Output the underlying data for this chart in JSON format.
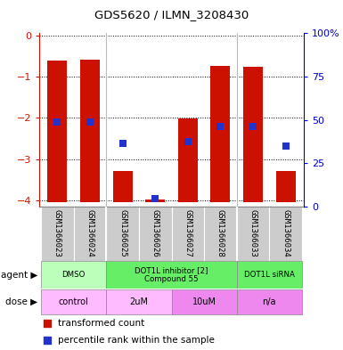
{
  "title": "GDS5620 / ILMN_3208430",
  "samples": [
    "GSM1366023",
    "GSM1366024",
    "GSM1366025",
    "GSM1366026",
    "GSM1366027",
    "GSM1366028",
    "GSM1366033",
    "GSM1366034"
  ],
  "red_bar_tops": [
    -0.62,
    -0.6,
    -3.3,
    -3.97,
    -2.02,
    -0.75,
    -0.77,
    -3.3
  ],
  "blue_dot_y": [
    -2.1,
    -2.1,
    -2.62,
    -3.95,
    -2.58,
    -2.2,
    -2.22,
    -2.68
  ],
  "ylim_left": [
    -4.15,
    0.05
  ],
  "ylim_right": [
    0,
    100
  ],
  "yticks_left": [
    0,
    -1,
    -2,
    -3,
    -4
  ],
  "yticks_right": [
    0,
    25,
    50,
    75,
    100
  ],
  "bar_color": "#cc1100",
  "dot_color": "#2233cc",
  "bar_bottom": -4.05,
  "agents": [
    {
      "label": "DMSO",
      "start": 0,
      "end": 2,
      "color": "#bbffbb"
    },
    {
      "label": "DOT1L inhibitor [2]\nCompound 55",
      "start": 2,
      "end": 6,
      "color": "#66ee66"
    },
    {
      "label": "DOT1L siRNA",
      "start": 6,
      "end": 8,
      "color": "#66ee66"
    }
  ],
  "doses": [
    {
      "label": "control",
      "start": 0,
      "end": 2,
      "color": "#ffbbff"
    },
    {
      "label": "2uM",
      "start": 2,
      "end": 4,
      "color": "#ffbbff"
    },
    {
      "label": "10uM",
      "start": 4,
      "end": 6,
      "color": "#ee88ee"
    },
    {
      "label": "n/a",
      "start": 6,
      "end": 8,
      "color": "#ee88ee"
    }
  ],
  "legend_red": "transformed count",
  "legend_blue": "percentile rank within the sample",
  "bar_width": 0.6,
  "bg_color": "#ffffff",
  "right_axis_color": "#0000cc",
  "left_axis_color": "#cc1100",
  "sample_bg": "#cccccc",
  "sep_color": "#ffffff",
  "group_seps": [
    1.5,
    5.5
  ]
}
